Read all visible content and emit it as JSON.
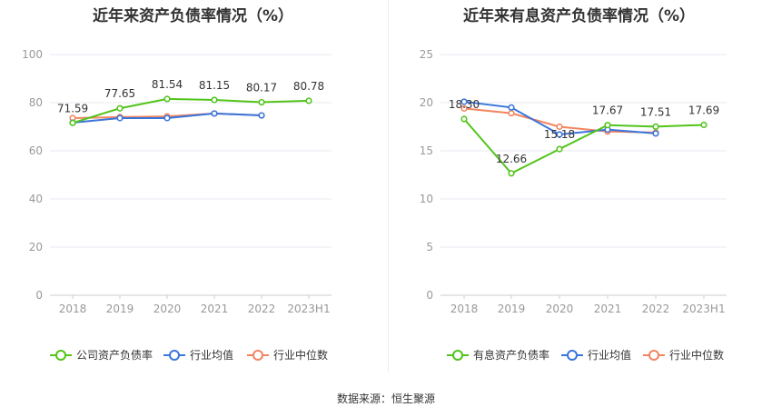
{
  "source": "数据来源：恒生聚源",
  "chart_data": [
    {
      "type": "line",
      "title": "近年来资产负债率情况（%）",
      "categories": [
        "2018",
        "2019",
        "2020",
        "2021",
        "2022",
        "2023H1"
      ],
      "ylim": [
        0,
        100
      ],
      "yticks": [
        0,
        20,
        40,
        60,
        80,
        100
      ],
      "grid": true,
      "legend": "bottom",
      "series": [
        {
          "name": "公司资产负债率",
          "color": "#52c41a",
          "values": [
            71.59,
            77.65,
            81.54,
            81.15,
            80.17,
            80.78
          ],
          "labels": true
        },
        {
          "name": "行业均值",
          "color": "#3a75dc",
          "values": [
            71.7,
            73.6,
            73.6,
            75.5,
            74.7,
            null
          ]
        },
        {
          "name": "行业中位数",
          "color": "#f4845f",
          "values": [
            73.6,
            74.0,
            74.3,
            75.5,
            74.7,
            null
          ]
        }
      ]
    },
    {
      "type": "line",
      "title": "近年来有息资产负债率情况（%）",
      "categories": [
        "2018",
        "2019",
        "2020",
        "2021",
        "2022",
        "2023H1"
      ],
      "ylim": [
        0,
        25
      ],
      "yticks": [
        0,
        5,
        10,
        15,
        20,
        25
      ],
      "grid": true,
      "legend": "bottom",
      "series": [
        {
          "name": "有息资产负债率",
          "color": "#52c41a",
          "values": [
            18.3,
            12.66,
            15.18,
            17.67,
            17.51,
            17.69
          ],
          "labels": true
        },
        {
          "name": "行业均值",
          "color": "#3a75dc",
          "values": [
            20.1,
            19.5,
            16.7,
            17.2,
            16.8,
            null
          ]
        },
        {
          "name": "行业中位数",
          "color": "#f4845f",
          "values": [
            19.4,
            18.9,
            17.5,
            17.0,
            16.9,
            null
          ]
        }
      ]
    }
  ]
}
